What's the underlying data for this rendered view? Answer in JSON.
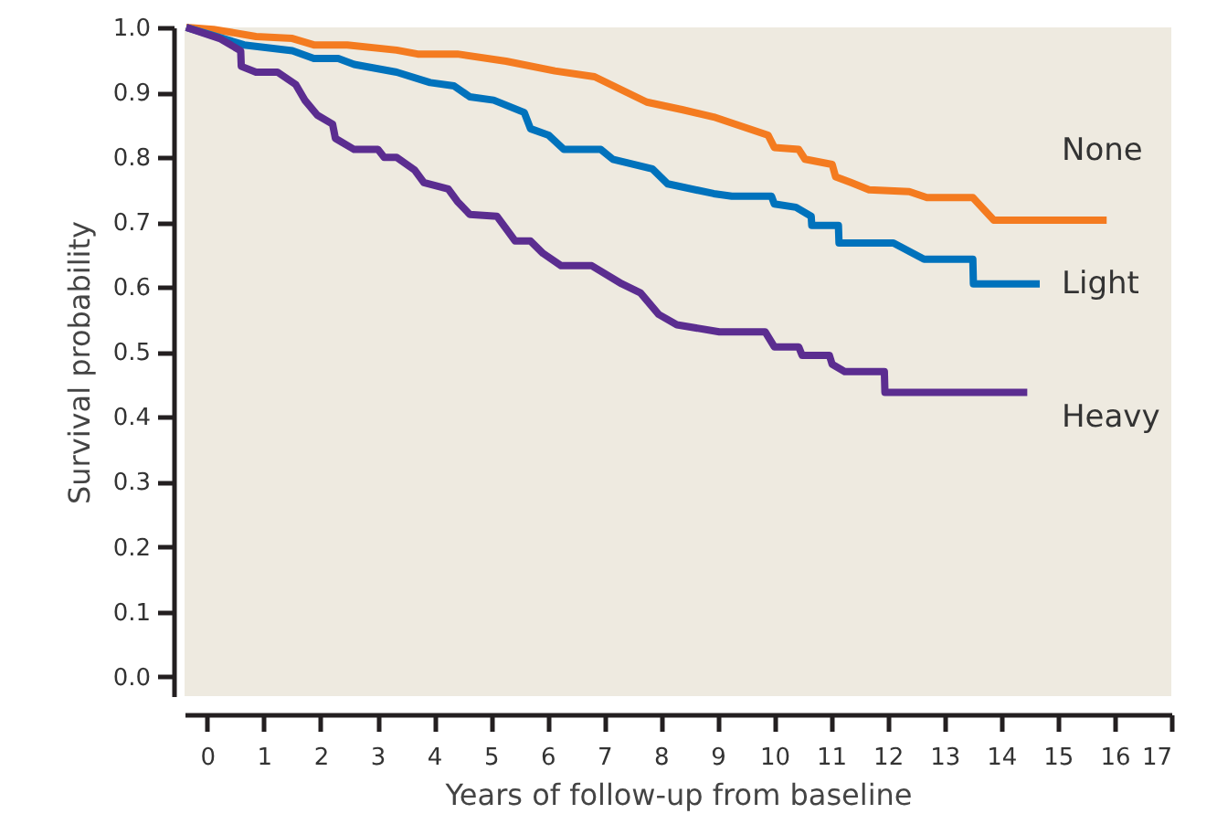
{
  "chart_data": {
    "type": "line",
    "xlabel": "Years of follow-up from baseline",
    "ylabel": "Survival probability",
    "xlim": [
      -0.4,
      17
    ],
    "ylim": [
      -0.03,
      1.0
    ],
    "xticks": [
      0,
      1,
      2,
      3,
      4,
      5,
      6,
      7,
      8,
      9,
      10,
      11,
      12,
      13,
      14,
      15,
      16,
      17
    ],
    "yticks": [
      {
        "value": 0,
        "label": "0.0"
      },
      0.1,
      0.2,
      0.3,
      0.4,
      0.5,
      0.6,
      0.7,
      0.8,
      0.9,
      {
        "value": 1,
        "label": "1.0"
      }
    ],
    "grid": false,
    "legend": false,
    "marker": "none",
    "line_style": "solid",
    "series": [
      {
        "name": "None",
        "color": "#f47b20",
        "x": [
          -0.37,
          0.11,
          0.86,
          1.5,
          1.88,
          2.47,
          3.34,
          3.71,
          4.41,
          5.27,
          6.13,
          6.83,
          7.75,
          8.39,
          8.93,
          9.89,
          10.0,
          10.43,
          10.54,
          11.02,
          11.08,
          11.35,
          11.67,
          12.38,
          12.69,
          13.5,
          13.87,
          15.86
        ],
        "values": [
          1.0,
          0.997,
          0.986,
          0.983,
          0.973,
          0.973,
          0.965,
          0.959,
          0.959,
          0.948,
          0.933,
          0.924,
          0.885,
          0.873,
          0.862,
          0.834,
          0.815,
          0.812,
          0.797,
          0.789,
          0.77,
          0.761,
          0.75,
          0.747,
          0.738,
          0.738,
          0.703,
          0.703
        ]
      },
      {
        "name": "Light",
        "color": "#0072bc",
        "x": [
          -0.37,
          0.65,
          1.5,
          1.88,
          2.31,
          2.59,
          3.34,
          3.93,
          4.35,
          4.63,
          5.05,
          5.59,
          5.7,
          6.02,
          6.29,
          6.94,
          7.15,
          7.85,
          8.12,
          8.93,
          9.25,
          9.95,
          10.0,
          10.38,
          10.65,
          10.66,
          11.13,
          11.14,
          12.1,
          12.64,
          13.5,
          13.51,
          14.68
        ],
        "values": [
          1.0,
          0.973,
          0.964,
          0.952,
          0.952,
          0.943,
          0.931,
          0.915,
          0.91,
          0.893,
          0.888,
          0.869,
          0.844,
          0.834,
          0.812,
          0.812,
          0.797,
          0.782,
          0.759,
          0.744,
          0.74,
          0.74,
          0.728,
          0.723,
          0.709,
          0.695,
          0.695,
          0.668,
          0.668,
          0.643,
          0.643,
          0.605,
          0.605
        ]
      },
      {
        "name": "Heavy",
        "color": "#5b2d90",
        "x": [
          -0.37,
          0.22,
          0.59,
          0.6,
          0.86,
          1.24,
          1.56,
          1.72,
          1.94,
          2.21,
          2.26,
          2.59,
          3.01,
          3.12,
          3.34,
          3.66,
          3.82,
          4.25,
          4.41,
          4.63,
          5.11,
          5.43,
          5.7,
          5.92,
          6.24,
          6.78,
          7.31,
          7.64,
          7.96,
          8.28,
          9.03,
          9.84,
          10.0,
          10.43,
          10.49,
          10.97,
          11.02,
          11.24,
          11.94,
          11.95,
          14.46
        ],
        "values": [
          1.0,
          0.983,
          0.964,
          0.94,
          0.931,
          0.931,
          0.912,
          0.888,
          0.865,
          0.851,
          0.829,
          0.812,
          0.812,
          0.8,
          0.8,
          0.78,
          0.761,
          0.751,
          0.732,
          0.712,
          0.709,
          0.671,
          0.671,
          0.652,
          0.633,
          0.633,
          0.605,
          0.591,
          0.558,
          0.542,
          0.531,
          0.531,
          0.508,
          0.508,
          0.495,
          0.495,
          0.481,
          0.47,
          0.47,
          0.438,
          0.438
        ]
      }
    ]
  }
}
